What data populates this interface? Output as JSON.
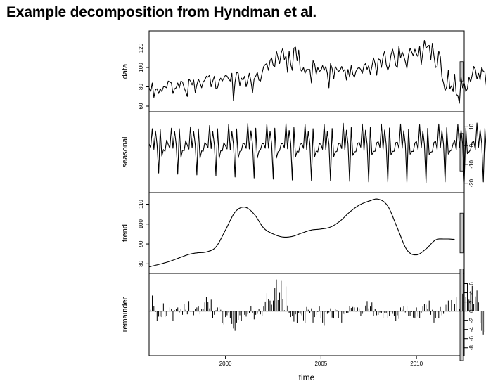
{
  "page": {
    "title": "Example decomposition from Hyndman et al."
  },
  "chart_data": {
    "type": "line",
    "xlabel": "time",
    "x_ticks": [
      2000,
      2005,
      2010
    ],
    "x_range": [
      1996.0,
      2012.5
    ],
    "start": 1996.0,
    "frequency": 12,
    "panels": [
      {
        "name": "data",
        "ylabel": "data",
        "yticks": [
          60,
          80,
          100,
          120
        ],
        "ylim": [
          60,
          132
        ],
        "plot_style": "line",
        "values": [
          79,
          75,
          84,
          69,
          77,
          78,
          73,
          78,
          75,
          80,
          80,
          79,
          86,
          85,
          84,
          73,
          78,
          79,
          84,
          79,
          86,
          85,
          79,
          75,
          70,
          88,
          86,
          82,
          87,
          74,
          82,
          88,
          84,
          79,
          85,
          87,
          91,
          90,
          92,
          80,
          86,
          91,
          78,
          79,
          86,
          89,
          86,
          89,
          92,
          91,
          88,
          86,
          94,
          66,
          85,
          95,
          94,
          81,
          89,
          87,
          91,
          80,
          87,
          94,
          86,
          74,
          88,
          91,
          95,
          87,
          86,
          94,
          101,
          103,
          104,
          97,
          107,
          110,
          102,
          101,
          117,
          110,
          104,
          115,
          120,
          108,
          112,
          95,
          117,
          103,
          97,
          120,
          121,
          107,
          118,
          98,
          96,
          100,
          94,
          98,
          98,
          98,
          84,
          107,
          104,
          93,
          100,
          96,
          97,
          102,
          97,
          101,
          94,
          79,
          104,
          99,
          88,
          101,
          98,
          96,
          97,
          101,
          96,
          98,
          87,
          98,
          90,
          102,
          93,
          90,
          96,
          99,
          100,
          98,
          94,
          102,
          104,
          98,
          102,
          93,
          101,
          110,
          104,
          92,
          109,
          108,
          100,
          111,
          117,
          103,
          97,
          102,
          113,
          119,
          112,
          102,
          100,
          122,
          110,
          116,
          112,
          106,
          99,
          113,
          120,
          116,
          112,
          119,
          114,
          111,
          122,
          103,
          116,
          128,
          120,
          122,
          123,
          108,
          125,
          112,
          100,
          101,
          117,
          111,
          90,
          84,
          76,
          80,
          97,
          78,
          81,
          75,
          93,
          72,
          71,
          63,
          90,
          79,
          84,
          75,
          78,
          90,
          85,
          92,
          101,
          98,
          88,
          94,
          87,
          100,
          96,
          95,
          80,
          88,
          102,
          93,
          99,
          83,
          92,
          101,
          81,
          87,
          91,
          94,
          98,
          93,
          83,
          90,
          92,
          96,
          104,
          105,
          96,
          84,
          76,
          91,
          93,
          92,
          92
        ]
      },
      {
        "name": "seasonal",
        "ylabel": "seasonal",
        "yticks": [
          -20,
          -10,
          0,
          10
        ],
        "ylim": [
          -22,
          15
        ],
        "plot_style": "line",
        "values": [
          0.9,
          -1.1,
          9.0,
          -2.0,
          7.8,
          0.5,
          -14.6,
          8.8,
          -5.6,
          -2.1,
          -3.1,
          2.9,
          0.6,
          -1.4,
          9.3,
          -1.4,
          7.7,
          0.6,
          -15.2,
          9.0,
          -6.3,
          -2.4,
          -2.8,
          2.6,
          0.2,
          -1.9,
          10.0,
          -1.3,
          7.4,
          0.4,
          -15.6,
          8.9,
          -6.7,
          -2.8,
          -3.0,
          1.6,
          0.5,
          -1.2,
          10.7,
          -1.6,
          7.5,
          0.3,
          -16.0,
          9.0,
          -6.8,
          -2.8,
          -2.8,
          1.6,
          -0.1,
          -1.8,
          11.4,
          -2.3,
          7.5,
          0.7,
          -16.7,
          8.9,
          -6.6,
          -3.1,
          -2.7,
          1.3,
          0.8,
          -1.5,
          11.8,
          -1.8,
          7.9,
          0.5,
          -17.2,
          9.3,
          -6.6,
          -3.1,
          -2.2,
          0.9,
          1.1,
          -1.4,
          11.5,
          -1.4,
          7.7,
          1.1,
          -17.8,
          9.3,
          -6.6,
          -3.3,
          -2.7,
          0.9,
          1.1,
          -1.3,
          11.7,
          -1.7,
          8.1,
          1.0,
          -18.3,
          9.6,
          -6.0,
          -3.0,
          -3.4,
          0.7,
          1.1,
          -1.5,
          11.4,
          -2.1,
          7.6,
          1.2,
          -18.5,
          9.0,
          -6.0,
          -2.9,
          -3.3,
          1.1,
          0.6,
          -2.0,
          11.3,
          -2.4,
          7.5,
          0.7,
          -18.8,
          9.1,
          -5.8,
          -3.4,
          -3.1,
          1.0,
          1.2,
          -1.6,
          11.9,
          -2.4,
          8.2,
          0.8,
          -19.0,
          9.6,
          -5.2,
          -3.4,
          -3.2,
          1.1,
          1.7,
          -0.9,
          11.5,
          -2.7,
          8.2,
          0.5,
          -19.3,
          9.6,
          -4.9,
          -3.1,
          -3.0,
          1.5,
          2.1,
          -1.0,
          11.5,
          -2.0,
          8.3,
          0.4,
          -19.4,
          9.4,
          -4.9,
          -3.1,
          -3.0,
          1.6,
          1.8,
          -1.5,
          11.5,
          -1.4,
          7.9,
          0.6,
          -19.5,
          8.8,
          -4.6,
          -3.1,
          -3.1,
          1.4,
          2.2,
          -2.2,
          11.1,
          -1.3,
          7.8,
          0.7,
          -19.7,
          9.2,
          -4.7,
          -3.5,
          -3.2,
          1.7,
          2.3,
          -2.1,
          11.5,
          -1.2,
          8.0,
          0.6,
          -19.3,
          9.5,
          -4.5,
          -3.0,
          -2.4,
          1.0,
          2.8,
          -2.3,
          11.4,
          -1.0,
          8.3,
          0.9,
          -19.5,
          9.4,
          -4.3,
          -3.4,
          -2.1,
          1.8,
          2.1,
          -2.1,
          12.0,
          -0.9,
          8.4,
          1.1,
          -19.3,
          9.2,
          -4.6,
          -2.7,
          -2.6,
          1.6,
          3.1,
          -2.2,
          11.1,
          -1.5,
          7.5,
          1.1,
          -19.8,
          9.8,
          -4.1,
          -2.9,
          -2.9,
          1.9,
          3.2,
          -2.6,
          11.5,
          -1.2,
          8.2,
          1.3,
          -19.0,
          9.6,
          -4.7,
          -2.6,
          -2.9,
          2.2,
          3.4,
          -2.1,
          11.5,
          -1.7,
          7.6
        ]
      },
      {
        "name": "trend",
        "ylabel": "trend",
        "yticks": [
          80,
          90,
          100,
          110
        ],
        "ylim": [
          78,
          113
        ],
        "plot_style": "line",
        "knots": [
          [
            1996.0,
            78.5
          ],
          [
            1997.0,
            81.0
          ],
          [
            1998.0,
            84.5
          ],
          [
            1998.5,
            85.5
          ],
          [
            1999.0,
            86.0
          ],
          [
            1999.5,
            88.5
          ],
          [
            2000.0,
            97.0
          ],
          [
            2000.5,
            106.0
          ],
          [
            2001.0,
            108.5
          ],
          [
            2001.5,
            105.0
          ],
          [
            2002.0,
            98.0
          ],
          [
            2002.5,
            95.0
          ],
          [
            2003.0,
            93.5
          ],
          [
            2003.5,
            93.8
          ],
          [
            2004.0,
            95.5
          ],
          [
            2004.5,
            97.0
          ],
          [
            2005.0,
            97.5
          ],
          [
            2005.5,
            98.5
          ],
          [
            2006.0,
            101.5
          ],
          [
            2006.5,
            106.0
          ],
          [
            2007.0,
            109.5
          ],
          [
            2007.5,
            111.5
          ],
          [
            2008.0,
            112.5
          ],
          [
            2008.5,
            109.0
          ],
          [
            2009.0,
            98.0
          ],
          [
            2009.5,
            87.0
          ],
          [
            2010.0,
            84.5
          ],
          [
            2010.5,
            87.5
          ],
          [
            2011.0,
            92.0
          ],
          [
            2011.5,
            92.5
          ],
          [
            2012.0,
            92.3
          ]
        ]
      },
      {
        "name": "remainder",
        "ylabel": "remainder",
        "yticks": [
          -8,
          -6,
          -4,
          -2,
          0,
          2,
          4,
          6
        ],
        "ylim": [
          -8.5,
          7.0
        ],
        "plot_style": "bars",
        "values": [
          0.5,
          0.3,
          3.4,
          1.1,
          -0.2,
          -2.1,
          -1.2,
          -1.2,
          -1.3,
          1.7,
          -1.3,
          -1.0,
          0.0,
          0.8,
          0.5,
          -2.1,
          0.2,
          0.5,
          0.8,
          -0.3,
          0.5,
          -0.8,
          1.5,
          0.3,
          -0.7,
          2.2,
          -0.1,
          -0.1,
          -0.9,
          0.5,
          0.8,
          1.0,
          -0.7,
          0.4,
          0.5,
          1.9,
          3.1,
          2.0,
          0.6,
          2.5,
          -1.5,
          -0.8,
          0.2,
          0.8,
          0.9,
          0.3,
          -2.6,
          -2.9,
          -1.3,
          -0.9,
          -0.3,
          -1.6,
          -2.8,
          -3.8,
          -4.3,
          -2.5,
          -1.9,
          -0.9,
          -2.1,
          -2.8,
          -0.8,
          -1.2,
          -0.7,
          -0.4,
          1.1,
          -0.4,
          -1.8,
          -0.8,
          -0.6,
          0.4,
          -0.7,
          -1.1,
          1.0,
          2.1,
          3.9,
          2.6,
          2.3,
          1.4,
          2.3,
          5.0,
          6.9,
          2.4,
          4.0,
          6.6,
          2.6,
          0.2,
          5.4,
          1.2,
          -0.4,
          -1.3,
          -1.1,
          -2.3,
          -0.7,
          -2.6,
          -0.4,
          -0.6,
          -0.9,
          -2.0,
          -2.6,
          0.9,
          0.3,
          -0.4,
          0.6,
          -2.5,
          -1.3,
          -0.8,
          -0.2,
          1.0,
          -1.6,
          -2.5,
          -3.2,
          -0.2,
          -0.6,
          -0.3,
          0.6,
          -1.4,
          -1.6,
          0.5,
          0.2,
          -1.5,
          -0.3,
          -2.5,
          -0.6,
          -0.7,
          -0.5,
          -0.4,
          1.1,
          0.7,
          0.9,
          0.8,
          -0.1,
          0.8,
          0.6,
          -1.0,
          -0.6,
          -0.4,
          1.2,
          2.2,
          0.6,
          1.0,
          1.9,
          -1.0,
          0.4,
          -0.9,
          -0.8,
          -0.3,
          -0.5,
          -1.6,
          -0.5,
          -0.5,
          -1.6,
          -1.1,
          -0.1,
          -0.6,
          -1.0,
          -2.2,
          -0.9,
          -1.7,
          0.8,
          0.3,
          1.0,
          -0.3,
          1.1,
          -1.1,
          -1.1,
          -0.2,
          -1.4,
          -1.6,
          0.8,
          -1.2,
          -1.5,
          -0.5,
          1.0,
          1.5,
          1.4,
          0.4,
          2.3,
          -0.8,
          0.3,
          -2.5,
          -1.5,
          -0.4,
          -1.6,
          0.9,
          -0.9,
          -0.6,
          1.4,
          1.4,
          2.3,
          -0.1,
          2.4,
          0.0,
          1.6,
          3.0,
          0.1,
          0.4,
          5.8,
          3.8,
          5.8,
          3.1,
          6.0,
          2.5,
          4.4,
          5.5,
          1.6,
          3.2,
          4.5,
          1.9,
          -2.6,
          -4.3,
          -5.1,
          -4.6,
          -5.8,
          -7.1,
          -6.7,
          -7.8,
          -2.9,
          -4.1,
          -3.7,
          -1.2,
          -1.0,
          0.4,
          -1.0,
          0.4,
          -1.1,
          1.0,
          2.0,
          1.2,
          -1.0,
          1.9,
          -0.4,
          -0.6,
          3.4,
          0.2,
          0.4,
          0.9,
          2.1,
          4.0,
          -0.5,
          1.3,
          2.4,
          3.3,
          0.2,
          -0.7,
          1.5,
          1.7,
          4.0,
          4.4,
          0.6,
          1.0,
          3.9,
          0.7,
          -0.4,
          -2.5,
          -1.9,
          -2.8,
          -1.8,
          -4.6
        ]
      }
    ]
  }
}
